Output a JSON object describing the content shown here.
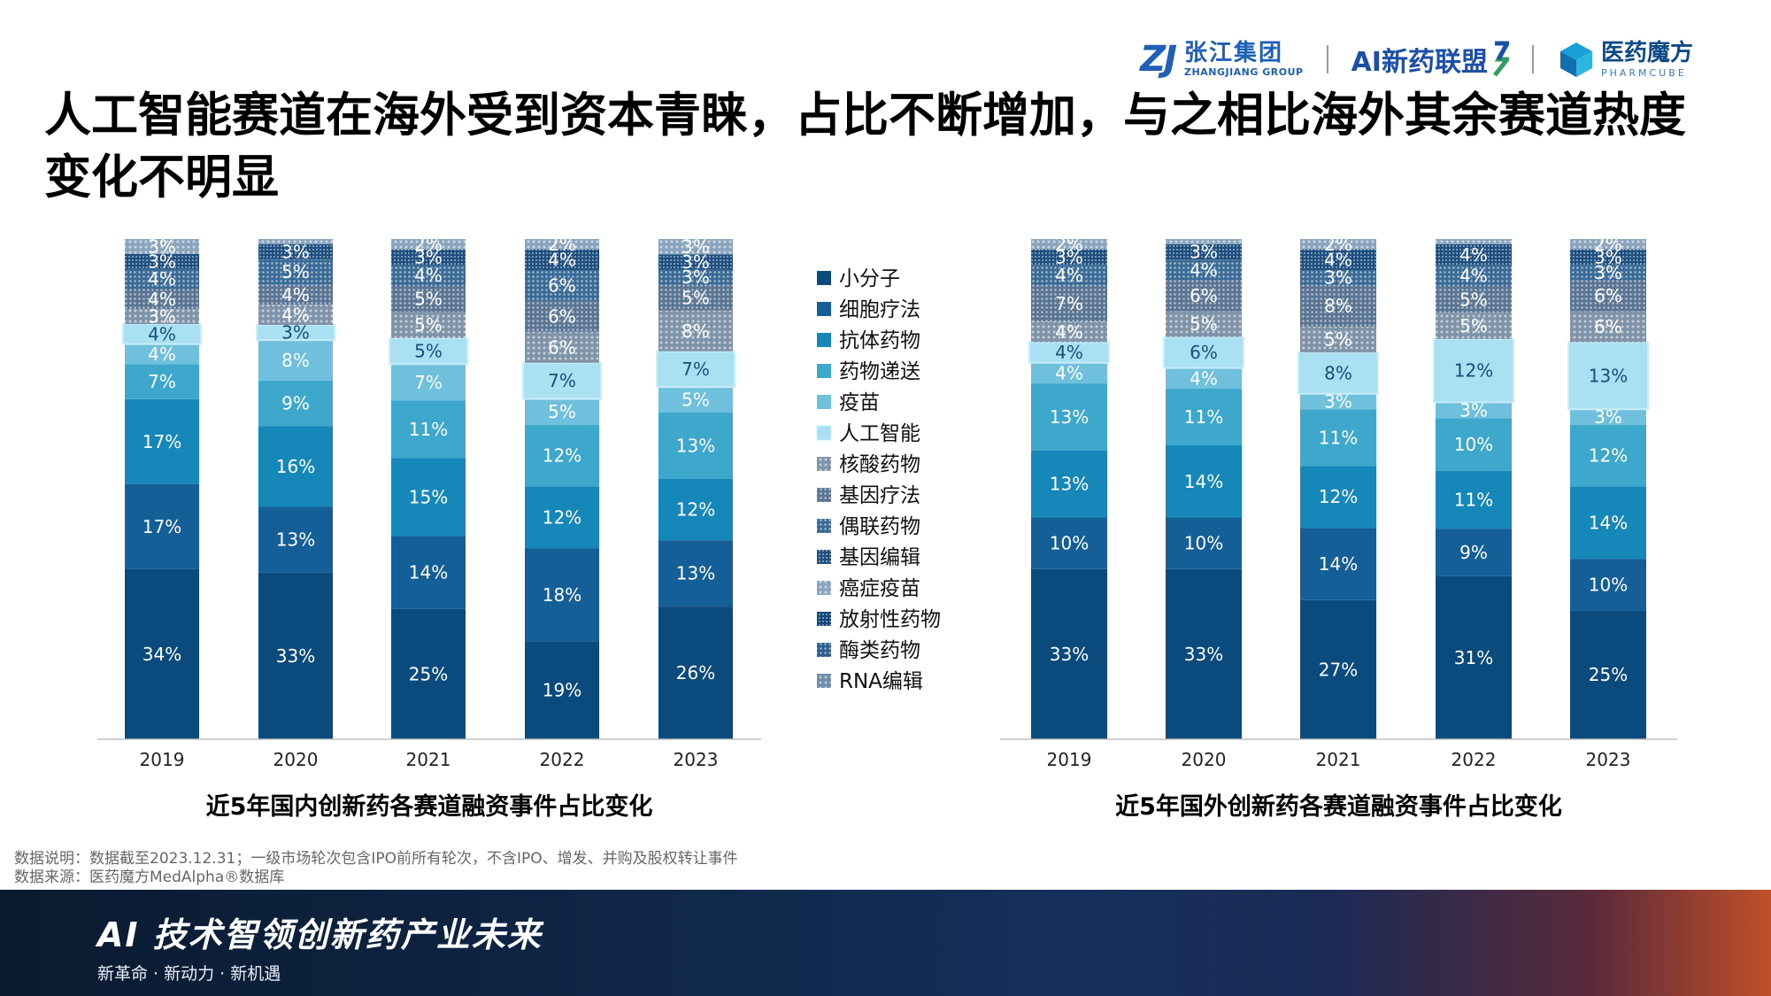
{
  "header": {
    "logos": {
      "zhangjiang": {
        "mark": "ZJ",
        "name_cn": "张江集团",
        "name_en": "ZHANGJIANG GROUP"
      },
      "ai_alliance": {
        "name": "AI新药联盟"
      },
      "pharmcube": {
        "name_cn": "医药魔方",
        "name_en": "PHARMCUBE"
      }
    },
    "title": "人工智能赛道在海外受到资本青睐，占比不断增加，与之相比海外其余赛道热度变化不明显"
  },
  "legend": {
    "items": [
      {
        "label": "小分子",
        "color": "#0b4a7d",
        "pattern": "solid"
      },
      {
        "label": "细胞疗法",
        "color": "#155f99",
        "pattern": "solid"
      },
      {
        "label": "抗体药物",
        "color": "#1587b8",
        "pattern": "solid"
      },
      {
        "label": "药物递送",
        "color": "#3ea7cc",
        "pattern": "solid"
      },
      {
        "label": "疫苗",
        "color": "#6fc0dd",
        "pattern": "solid"
      },
      {
        "label": "人工智能",
        "color": "#a9e0f2",
        "pattern": "highlight"
      },
      {
        "label": "核酸药物",
        "color": "#7f93a8",
        "pattern": "dots-light"
      },
      {
        "label": "基因疗法",
        "color": "#5a7594",
        "pattern": "dots"
      },
      {
        "label": "偶联药物",
        "color": "#3a6a96",
        "pattern": "dots"
      },
      {
        "label": "基因编辑",
        "color": "#1e4f80",
        "pattern": "dots-dense"
      },
      {
        "label": "癌症疫苗",
        "color": "#8aa4bd",
        "pattern": "dots-light"
      },
      {
        "label": "放射性药物",
        "color": "#12467a",
        "pattern": "dots-dense"
      },
      {
        "label": "酶类药物",
        "color": "#2b5e8c",
        "pattern": "dots"
      },
      {
        "label": "RNA编辑",
        "color": "#6f8cab",
        "pattern": "dots-light"
      }
    ]
  },
  "chart_data": [
    {
      "type": "bar",
      "stacked": true,
      "title": "近5年国内创新药各赛道融资事件占比变化",
      "categories": [
        "2019",
        "2020",
        "2021",
        "2022",
        "2023"
      ],
      "ylim": [
        0,
        100
      ],
      "series": [
        {
          "name": "小分子",
          "values": [
            34,
            33,
            25,
            19,
            26
          ]
        },
        {
          "name": "细胞疗法",
          "values": [
            17,
            13,
            14,
            18,
            13
          ]
        },
        {
          "name": "抗体药物",
          "values": [
            17,
            16,
            15,
            12,
            12
          ]
        },
        {
          "name": "药物递送",
          "values": [
            7,
            9,
            11,
            12,
            13
          ]
        },
        {
          "name": "疫苗",
          "values": [
            4,
            8,
            7,
            5,
            5
          ]
        },
        {
          "name": "人工智能",
          "values": [
            4,
            3,
            5,
            7,
            7
          ]
        },
        {
          "name": "核酸药物",
          "values": [
            3,
            4,
            5,
            6,
            8
          ]
        },
        {
          "name": "基因疗法",
          "values": [
            4,
            4,
            5,
            6,
            5
          ]
        },
        {
          "name": "偶联药物",
          "values": [
            4,
            5,
            4,
            6,
            3
          ]
        },
        {
          "name": "基因编辑",
          "values": [
            3,
            3,
            3,
            4,
            3
          ]
        },
        {
          "name": "癌症疫苗",
          "values": [
            3,
            1,
            2,
            2,
            3
          ]
        },
        {
          "name": "放射性药物",
          "values": [
            null,
            null,
            null,
            null,
            null
          ]
        },
        {
          "name": "酶类药物",
          "values": [
            null,
            null,
            null,
            null,
            null
          ]
        },
        {
          "name": "RNA编辑",
          "values": [
            null,
            null,
            null,
            null,
            null
          ]
        }
      ]
    },
    {
      "type": "bar",
      "stacked": true,
      "title": "近5年国外创新药各赛道融资事件占比变化",
      "categories": [
        "2019",
        "2020",
        "2021",
        "2022",
        "2023"
      ],
      "ylim": [
        0,
        100
      ],
      "series": [
        {
          "name": "小分子",
          "values": [
            33,
            33,
            27,
            31,
            25
          ]
        },
        {
          "name": "细胞疗法",
          "values": [
            10,
            10,
            14,
            9,
            10
          ]
        },
        {
          "name": "抗体药物",
          "values": [
            13,
            14,
            12,
            11,
            14
          ]
        },
        {
          "name": "药物递送",
          "values": [
            13,
            11,
            11,
            10,
            12
          ]
        },
        {
          "name": "疫苗",
          "values": [
            4,
            4,
            3,
            3,
            3
          ]
        },
        {
          "name": "人工智能",
          "values": [
            4,
            6,
            8,
            12,
            13
          ]
        },
        {
          "name": "核酸药物",
          "values": [
            4,
            5,
            5,
            5,
            6
          ]
        },
        {
          "name": "基因疗法",
          "values": [
            7,
            6,
            8,
            5,
            6
          ]
        },
        {
          "name": "偶联药物",
          "values": [
            4,
            4,
            3,
            4,
            3
          ]
        },
        {
          "name": "基因编辑",
          "values": [
            3,
            3,
            4,
            4,
            3
          ]
        },
        {
          "name": "癌症疫苗",
          "values": [
            2,
            1,
            2,
            1,
            2
          ]
        },
        {
          "name": "放射性药物",
          "values": [
            null,
            null,
            null,
            null,
            null
          ]
        },
        {
          "name": "酶类药物",
          "values": [
            null,
            null,
            null,
            null,
            null
          ]
        },
        {
          "name": "RNA编辑",
          "values": [
            null,
            null,
            null,
            null,
            null
          ]
        }
      ]
    }
  ],
  "notes": {
    "data_desc": "数据说明：数据截至2023.12.31；一级市场轮次包含IPO前所有轮次，不含IPO、增发、并购及股权转让事件",
    "data_source": "数据来源：医药魔方MedAlpha®数据库"
  },
  "banner": {
    "title": "AI 技术智领创新药产业未来",
    "subtitle": "新革命 · 新动力 · 新机遇"
  }
}
